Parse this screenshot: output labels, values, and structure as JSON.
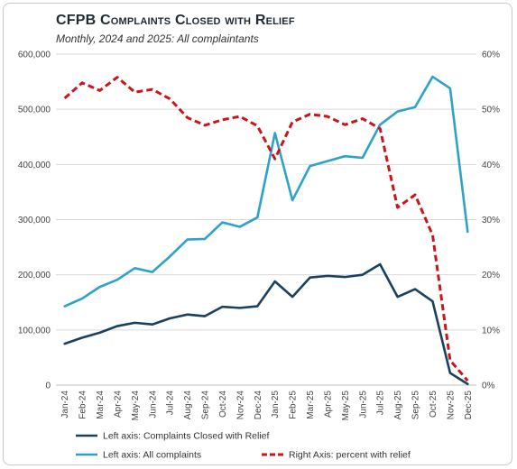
{
  "chart_data": {
    "type": "line",
    "title": "CFPB Complaints Closed with Relief",
    "subtitle": "Monthly, 2024 and 2025: All complaintants",
    "categories": [
      "Jan-24",
      "Feb-24",
      "Mar-24",
      "Apr-24",
      "May-24",
      "Jun-24",
      "Jul-24",
      "Aug-24",
      "Sep-24",
      "Oct-24",
      "Nov-24",
      "Dec-24",
      "Jan-25",
      "Feb-25",
      "Mar-25",
      "Apr-25",
      "May-25",
      "Jun-25",
      "Jul-25",
      "Aug-25",
      "Sep-25",
      "Oct-25",
      "Nov-25",
      "Dec-25"
    ],
    "left_axis": {
      "ylim": [
        0,
        600000
      ],
      "ticks": [
        "0",
        "100,000",
        "200,000",
        "300,000",
        "400,000",
        "500,000",
        "600,000"
      ],
      "tick_values": [
        0,
        100000,
        200000,
        300000,
        400000,
        500000,
        600000
      ]
    },
    "right_axis": {
      "ylim": [
        0,
        60
      ],
      "ticks": [
        "0%",
        "10%",
        "20%",
        "30%",
        "40%",
        "50%",
        "60%"
      ],
      "tick_values": [
        0,
        10,
        20,
        30,
        40,
        50,
        60
      ]
    },
    "series": [
      {
        "name": "Left axis: Complaints Closed with Relief",
        "axis": "left",
        "color": "#17415e",
        "dash": false,
        "values": [
          75000,
          86000,
          95000,
          107000,
          113000,
          110000,
          121000,
          128000,
          125000,
          142000,
          140000,
          143000,
          188000,
          160000,
          195000,
          198000,
          196000,
          200000,
          219000,
          160000,
          174000,
          152000,
          22000,
          2000
        ]
      },
      {
        "name": "Left axis: All complaints",
        "axis": "left",
        "color": "#2ea2c9",
        "dash": false,
        "values": [
          143000,
          157000,
          178000,
          191000,
          212000,
          205000,
          233000,
          264000,
          265000,
          295000,
          287000,
          304000,
          457000,
          335000,
          397000,
          406000,
          415000,
          412000,
          472000,
          496000,
          504000,
          559000,
          538000,
          278000
        ]
      },
      {
        "name": "Right Axis: percent with relief",
        "axis": "right",
        "color": "#c8171c",
        "dash": true,
        "values": [
          52.0,
          54.8,
          53.4,
          55.8,
          53.1,
          53.6,
          51.9,
          48.5,
          47.1,
          48.1,
          48.7,
          47.0,
          41.0,
          47.7,
          49.1,
          48.7,
          47.2,
          48.3,
          46.5,
          32.2,
          34.5,
          27.2,
          4.5,
          0.8
        ]
      }
    ],
    "grid": true,
    "legend_position": "bottom"
  }
}
